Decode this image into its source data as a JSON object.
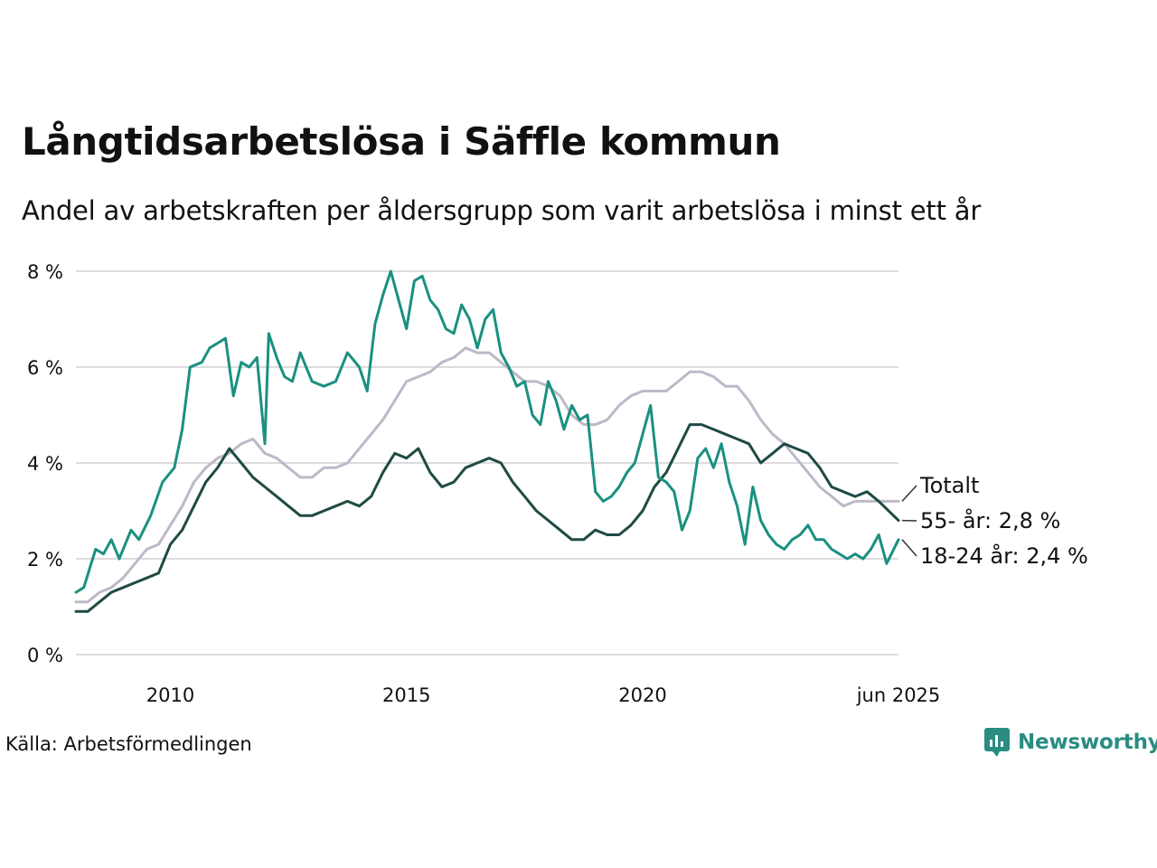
{
  "title": "Långtidsarbetslösa i Säffle kommun",
  "subtitle": "Andel av arbetskraften per åldersgrupp som varit arbetslösa i minst ett år",
  "source": "Källa: Arbetsförmedlingen",
  "brand": "Newsworthy",
  "colors": {
    "youth": "#1a9080",
    "senior": "#1f4a44",
    "total": "#bdb9c8",
    "grid": "#dcdce0",
    "brand": "#2a8c82"
  },
  "chart_data": {
    "type": "line",
    "x_start": "2008-01",
    "x_end": "2025-06",
    "x_ticks": [
      {
        "label": "2010",
        "date": "2010-01"
      },
      {
        "label": "2015",
        "date": "2015-01"
      },
      {
        "label": "2020",
        "date": "2020-01"
      },
      {
        "label": "jun 2025",
        "date": "2025-06"
      }
    ],
    "y_ticks": [
      {
        "label": "0 %",
        "value": 0
      },
      {
        "label": "2 %",
        "value": 2
      },
      {
        "label": "4 %",
        "value": 4
      },
      {
        "label": "6 %",
        "value": 6
      },
      {
        "label": "8 %",
        "value": 8
      }
    ],
    "ylim": [
      0,
      8
    ],
    "grid": true,
    "end_labels": {
      "total": "Totalt",
      "senior": "55- år: 2,8 %",
      "youth": "18-24 år: 2,4 %"
    },
    "series": [
      {
        "key": "total",
        "name": "Totalt",
        "points": [
          [
            "2008-01",
            1.1
          ],
          [
            "2008-04",
            1.1
          ],
          [
            "2008-07",
            1.3
          ],
          [
            "2008-10",
            1.4
          ],
          [
            "2009-01",
            1.6
          ],
          [
            "2009-04",
            1.9
          ],
          [
            "2009-07",
            2.2
          ],
          [
            "2009-10",
            2.3
          ],
          [
            "2010-01",
            2.7
          ],
          [
            "2010-04",
            3.1
          ],
          [
            "2010-07",
            3.6
          ],
          [
            "2010-10",
            3.9
          ],
          [
            "2011-01",
            4.1
          ],
          [
            "2011-04",
            4.2
          ],
          [
            "2011-07",
            4.4
          ],
          [
            "2011-10",
            4.5
          ],
          [
            "2012-01",
            4.2
          ],
          [
            "2012-04",
            4.1
          ],
          [
            "2012-07",
            3.9
          ],
          [
            "2012-10",
            3.7
          ],
          [
            "2013-01",
            3.7
          ],
          [
            "2013-04",
            3.9
          ],
          [
            "2013-07",
            3.9
          ],
          [
            "2013-10",
            4.0
          ],
          [
            "2014-01",
            4.3
          ],
          [
            "2014-04",
            4.6
          ],
          [
            "2014-07",
            4.9
          ],
          [
            "2014-10",
            5.3
          ],
          [
            "2015-01",
            5.7
          ],
          [
            "2015-04",
            5.8
          ],
          [
            "2015-07",
            5.9
          ],
          [
            "2015-10",
            6.1
          ],
          [
            "2016-01",
            6.2
          ],
          [
            "2016-04",
            6.4
          ],
          [
            "2016-07",
            6.3
          ],
          [
            "2016-10",
            6.3
          ],
          [
            "2017-01",
            6.1
          ],
          [
            "2017-04",
            5.9
          ],
          [
            "2017-07",
            5.7
          ],
          [
            "2017-10",
            5.7
          ],
          [
            "2018-01",
            5.6
          ],
          [
            "2018-04",
            5.4
          ],
          [
            "2018-07",
            5.0
          ],
          [
            "2018-10",
            4.8
          ],
          [
            "2019-01",
            4.8
          ],
          [
            "2019-04",
            4.9
          ],
          [
            "2019-07",
            5.2
          ],
          [
            "2019-10",
            5.4
          ],
          [
            "2020-01",
            5.5
          ],
          [
            "2020-04",
            5.5
          ],
          [
            "2020-07",
            5.5
          ],
          [
            "2020-10",
            5.7
          ],
          [
            "2021-01",
            5.9
          ],
          [
            "2021-04",
            5.9
          ],
          [
            "2021-07",
            5.8
          ],
          [
            "2021-10",
            5.6
          ],
          [
            "2022-01",
            5.6
          ],
          [
            "2022-04",
            5.3
          ],
          [
            "2022-07",
            4.9
          ],
          [
            "2022-10",
            4.6
          ],
          [
            "2023-01",
            4.4
          ],
          [
            "2023-04",
            4.1
          ],
          [
            "2023-07",
            3.8
          ],
          [
            "2023-10",
            3.5
          ],
          [
            "2024-01",
            3.3
          ],
          [
            "2024-04",
            3.1
          ],
          [
            "2024-07",
            3.2
          ],
          [
            "2024-10",
            3.2
          ],
          [
            "2025-01",
            3.2
          ],
          [
            "2025-06",
            3.2
          ]
        ]
      },
      {
        "key": "senior",
        "name": "55- år",
        "points": [
          [
            "2008-01",
            0.9
          ],
          [
            "2008-04",
            0.9
          ],
          [
            "2008-07",
            1.1
          ],
          [
            "2008-10",
            1.3
          ],
          [
            "2009-01",
            1.4
          ],
          [
            "2009-04",
            1.5
          ],
          [
            "2009-07",
            1.6
          ],
          [
            "2009-10",
            1.7
          ],
          [
            "2010-01",
            2.3
          ],
          [
            "2010-04",
            2.6
          ],
          [
            "2010-07",
            3.1
          ],
          [
            "2010-10",
            3.6
          ],
          [
            "2011-01",
            3.9
          ],
          [
            "2011-04",
            4.3
          ],
          [
            "2011-07",
            4.0
          ],
          [
            "2011-10",
            3.7
          ],
          [
            "2012-01",
            3.5
          ],
          [
            "2012-04",
            3.3
          ],
          [
            "2012-07",
            3.1
          ],
          [
            "2012-10",
            2.9
          ],
          [
            "2013-01",
            2.9
          ],
          [
            "2013-04",
            3.0
          ],
          [
            "2013-07",
            3.1
          ],
          [
            "2013-10",
            3.2
          ],
          [
            "2014-01",
            3.1
          ],
          [
            "2014-04",
            3.3
          ],
          [
            "2014-07",
            3.8
          ],
          [
            "2014-10",
            4.2
          ],
          [
            "2015-01",
            4.1
          ],
          [
            "2015-04",
            4.3
          ],
          [
            "2015-07",
            3.8
          ],
          [
            "2015-10",
            3.5
          ],
          [
            "2016-01",
            3.6
          ],
          [
            "2016-04",
            3.9
          ],
          [
            "2016-07",
            4.0
          ],
          [
            "2016-10",
            4.1
          ],
          [
            "2017-01",
            4.0
          ],
          [
            "2017-04",
            3.6
          ],
          [
            "2017-07",
            3.3
          ],
          [
            "2017-10",
            3.0
          ],
          [
            "2018-01",
            2.8
          ],
          [
            "2018-04",
            2.6
          ],
          [
            "2018-07",
            2.4
          ],
          [
            "2018-10",
            2.4
          ],
          [
            "2019-01",
            2.6
          ],
          [
            "2019-04",
            2.5
          ],
          [
            "2019-07",
            2.5
          ],
          [
            "2019-10",
            2.7
          ],
          [
            "2020-01",
            3.0
          ],
          [
            "2020-04",
            3.5
          ],
          [
            "2020-07",
            3.8
          ],
          [
            "2020-10",
            4.3
          ],
          [
            "2021-01",
            4.8
          ],
          [
            "2021-04",
            4.8
          ],
          [
            "2021-07",
            4.7
          ],
          [
            "2021-10",
            4.6
          ],
          [
            "2022-01",
            4.5
          ],
          [
            "2022-04",
            4.4
          ],
          [
            "2022-07",
            4.0
          ],
          [
            "2022-10",
            4.2
          ],
          [
            "2023-01",
            4.4
          ],
          [
            "2023-04",
            4.3
          ],
          [
            "2023-07",
            4.2
          ],
          [
            "2023-10",
            3.9
          ],
          [
            "2024-01",
            3.5
          ],
          [
            "2024-04",
            3.4
          ],
          [
            "2024-07",
            3.3
          ],
          [
            "2024-10",
            3.4
          ],
          [
            "2025-01",
            3.2
          ],
          [
            "2025-06",
            2.8
          ]
        ]
      },
      {
        "key": "youth",
        "name": "18-24 år",
        "points": [
          [
            "2008-01",
            1.3
          ],
          [
            "2008-03",
            1.4
          ],
          [
            "2008-06",
            2.2
          ],
          [
            "2008-08",
            2.1
          ],
          [
            "2008-10",
            2.4
          ],
          [
            "2008-12",
            2.0
          ],
          [
            "2009-03",
            2.6
          ],
          [
            "2009-05",
            2.4
          ],
          [
            "2009-08",
            2.9
          ],
          [
            "2009-11",
            3.6
          ],
          [
            "2010-02",
            3.9
          ],
          [
            "2010-04",
            4.7
          ],
          [
            "2010-06",
            6.0
          ],
          [
            "2010-09",
            6.1
          ],
          [
            "2010-11",
            6.4
          ],
          [
            "2011-01",
            6.5
          ],
          [
            "2011-03",
            6.6
          ],
          [
            "2011-05",
            5.4
          ],
          [
            "2011-07",
            6.1
          ],
          [
            "2011-09",
            6.0
          ],
          [
            "2011-11",
            6.2
          ],
          [
            "2012-01",
            4.4
          ],
          [
            "2012-02",
            6.7
          ],
          [
            "2012-04",
            6.2
          ],
          [
            "2012-06",
            5.8
          ],
          [
            "2012-08",
            5.7
          ],
          [
            "2012-10",
            6.3
          ],
          [
            "2013-01",
            5.7
          ],
          [
            "2013-04",
            5.6
          ],
          [
            "2013-07",
            5.7
          ],
          [
            "2013-10",
            6.3
          ],
          [
            "2014-01",
            6.0
          ],
          [
            "2014-03",
            5.5
          ],
          [
            "2014-05",
            6.9
          ],
          [
            "2014-07",
            7.5
          ],
          [
            "2014-09",
            8.0
          ],
          [
            "2014-11",
            7.4
          ],
          [
            "2015-01",
            6.8
          ],
          [
            "2015-03",
            7.8
          ],
          [
            "2015-05",
            7.9
          ],
          [
            "2015-07",
            7.4
          ],
          [
            "2015-09",
            7.2
          ],
          [
            "2015-11",
            6.8
          ],
          [
            "2016-01",
            6.7
          ],
          [
            "2016-03",
            7.3
          ],
          [
            "2016-05",
            7.0
          ],
          [
            "2016-07",
            6.4
          ],
          [
            "2016-09",
            7.0
          ],
          [
            "2016-11",
            7.2
          ],
          [
            "2017-01",
            6.3
          ],
          [
            "2017-03",
            6.0
          ],
          [
            "2017-05",
            5.6
          ],
          [
            "2017-07",
            5.7
          ],
          [
            "2017-09",
            5.0
          ],
          [
            "2017-11",
            4.8
          ],
          [
            "2018-01",
            5.7
          ],
          [
            "2018-03",
            5.3
          ],
          [
            "2018-05",
            4.7
          ],
          [
            "2018-07",
            5.2
          ],
          [
            "2018-09",
            4.9
          ],
          [
            "2018-11",
            5.0
          ],
          [
            "2019-01",
            3.4
          ],
          [
            "2019-03",
            3.2
          ],
          [
            "2019-05",
            3.3
          ],
          [
            "2019-07",
            3.5
          ],
          [
            "2019-09",
            3.8
          ],
          [
            "2019-11",
            4.0
          ],
          [
            "2020-01",
            4.6
          ],
          [
            "2020-03",
            5.2
          ],
          [
            "2020-05",
            3.7
          ],
          [
            "2020-07",
            3.6
          ],
          [
            "2020-09",
            3.4
          ],
          [
            "2020-11",
            2.6
          ],
          [
            "2021-01",
            3.0
          ],
          [
            "2021-03",
            4.1
          ],
          [
            "2021-05",
            4.3
          ],
          [
            "2021-07",
            3.9
          ],
          [
            "2021-09",
            4.4
          ],
          [
            "2021-11",
            3.6
          ],
          [
            "2022-01",
            3.1
          ],
          [
            "2022-03",
            2.3
          ],
          [
            "2022-05",
            3.5
          ],
          [
            "2022-07",
            2.8
          ],
          [
            "2022-09",
            2.5
          ],
          [
            "2022-11",
            2.3
          ],
          [
            "2023-01",
            2.2
          ],
          [
            "2023-03",
            2.4
          ],
          [
            "2023-05",
            2.5
          ],
          [
            "2023-07",
            2.7
          ],
          [
            "2023-09",
            2.4
          ],
          [
            "2023-11",
            2.4
          ],
          [
            "2024-01",
            2.2
          ],
          [
            "2024-03",
            2.1
          ],
          [
            "2024-05",
            2.0
          ],
          [
            "2024-07",
            2.1
          ],
          [
            "2024-09",
            2.0
          ],
          [
            "2024-11",
            2.2
          ],
          [
            "2025-01",
            2.5
          ],
          [
            "2025-03",
            1.9
          ],
          [
            "2025-06",
            2.4
          ]
        ]
      }
    ]
  }
}
